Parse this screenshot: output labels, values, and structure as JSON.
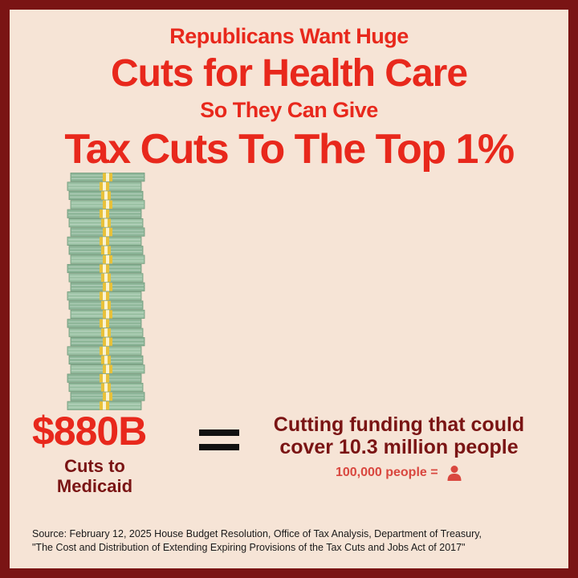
{
  "headline": {
    "line1": "Republicans Want Huge",
    "line2": "Cuts for Health Care",
    "line3": "So They Can Give",
    "line4": "Tax Cuts To The Top 1%"
  },
  "stat": {
    "amount": "$880B",
    "label_line1": "Cuts to",
    "label_line2": "Medicaid"
  },
  "comparison": {
    "line1": "Cutting funding that could",
    "line2": "cover 10.3 million people",
    "legend_text": "100,000 people =",
    "legend_icon": "person-icon"
  },
  "source": {
    "line1": "Source: February 12, 2025 House Budget Resolution, Office of Tax Analysis, Department of Treasury,",
    "line2": "\"The Cost and Distribution of Extending Expiring Provisions of the Tax Cuts and Jobs Act of 2017\""
  },
  "colors": {
    "accent": "#e8281c",
    "dark_red": "#7a1414",
    "background": "#f6e4d6",
    "money_green": "#8fb79a",
    "band_yellow": "#e8c13a"
  }
}
